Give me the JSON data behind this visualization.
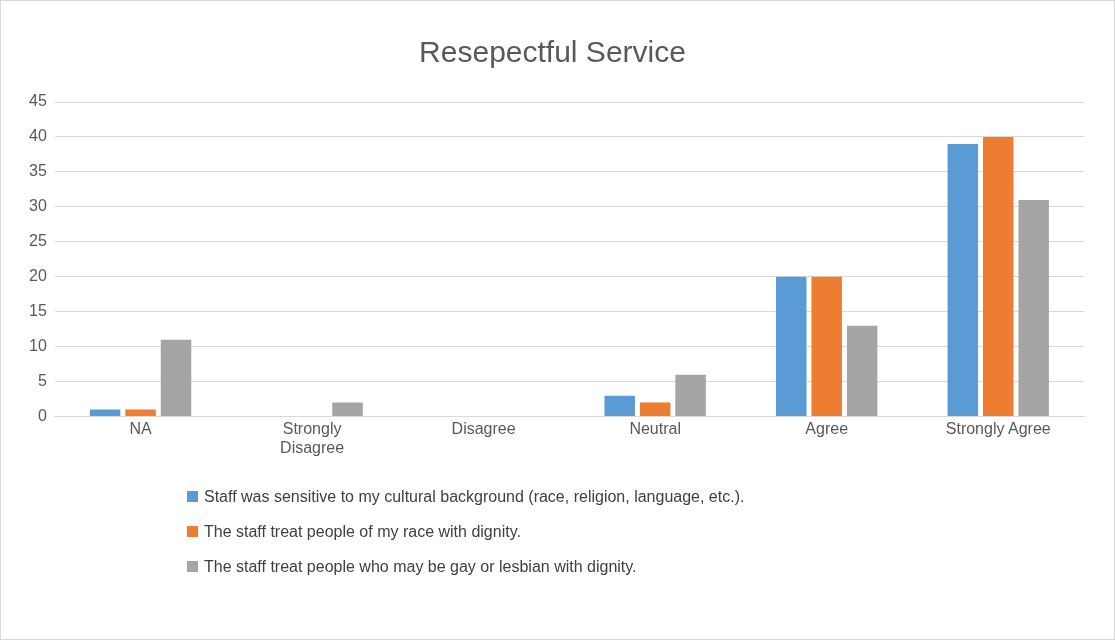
{
  "chart_data": {
    "type": "bar",
    "title": "Resepectful Service",
    "categories": [
      "NA",
      "Strongly Disagree",
      "Disagree",
      "Neutral",
      "Agree",
      "Strongly Agree"
    ],
    "series": [
      {
        "name": "Staff was sensitive to my cultural background (race, religion, language, etc.).",
        "color": "#5b9bd5",
        "values": [
          1,
          0,
          0,
          3,
          20,
          39
        ]
      },
      {
        "name": "The staff treat people of my race with dignity.",
        "color": "#ed7d31",
        "values": [
          1,
          0,
          0,
          2,
          20,
          40
        ]
      },
      {
        "name": "The staff treat people who may be gay or lesbian with dignity.",
        "color": "#a5a5a5",
        "values": [
          11,
          2,
          0,
          6,
          13,
          31
        ]
      }
    ],
    "ylim": [
      0,
      45
    ],
    "yticks": [
      0,
      5,
      10,
      15,
      20,
      25,
      30,
      35,
      40,
      45
    ],
    "grid": "y",
    "legend": "bottom"
  }
}
